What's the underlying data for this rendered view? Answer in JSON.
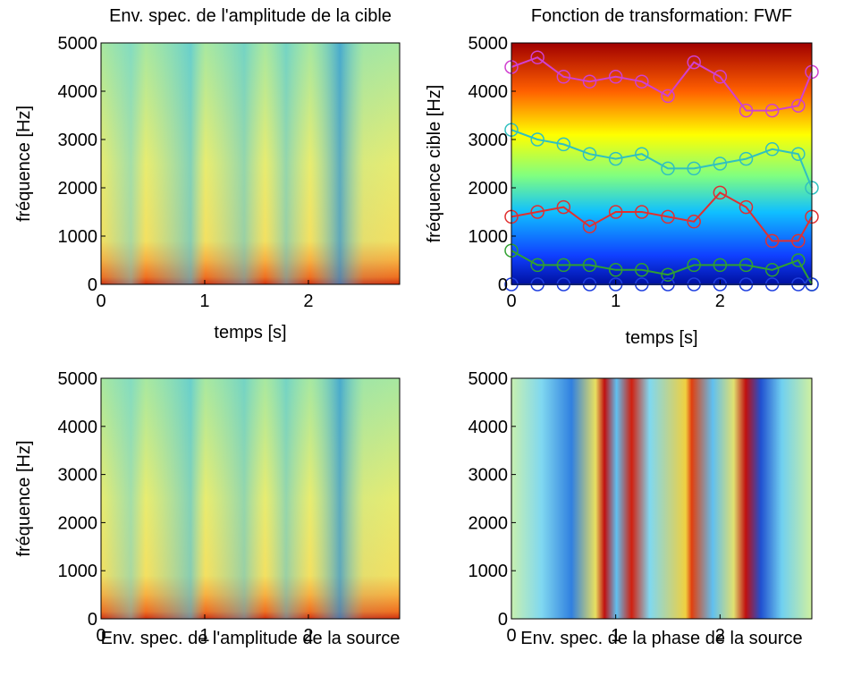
{
  "chart_data": [
    {
      "type": "spectrogram",
      "title": "Env. spec. de l'amplitude de la cible",
      "xlabel": "temps [s]",
      "ylabel": "fréquence [Hz]",
      "xlim": [
        0,
        2.88
      ],
      "ylim": [
        0,
        5000
      ],
      "xticks": [
        0,
        1,
        2
      ],
      "yticks": [
        0,
        1000,
        2000,
        3000,
        4000,
        5000
      ]
    },
    {
      "type": "spectrogram",
      "title": "Fonction de transformation: FWF",
      "xlabel": "temps [s]",
      "ylabel": "fréquence cible [Hz]",
      "xlim": [
        0,
        2.88
      ],
      "ylim": [
        0,
        5000
      ],
      "xticks": [
        0,
        1,
        2
      ],
      "yticks": [
        0,
        1000,
        2000,
        3000,
        4000,
        5000
      ],
      "x": [
        0,
        0.25,
        0.5,
        0.75,
        1,
        1.25,
        1.5,
        1.75,
        2,
        2.25,
        2.5,
        2.75,
        2.88
      ],
      "series": [
        {
          "color": "#d040d0",
          "values": [
            4500,
            4700,
            4300,
            4200,
            4300,
            4200,
            3900,
            4600,
            4300,
            3600,
            3600,
            3700,
            4400
          ]
        },
        {
          "color": "#30c0c0",
          "values": [
            3200,
            3000,
            2900,
            2700,
            2600,
            2700,
            2400,
            2400,
            2500,
            2600,
            2800,
            2700,
            2000
          ]
        },
        {
          "color": "#e03030",
          "values": [
            1400,
            1500,
            1600,
            1200,
            1500,
            1500,
            1400,
            1300,
            1900,
            1600,
            900,
            900,
            1400
          ]
        },
        {
          "color": "#30a030",
          "values": [
            700,
            400,
            400,
            400,
            300,
            300,
            200,
            400,
            400,
            400,
            300,
            500,
            0
          ]
        },
        {
          "color": "#2040e0",
          "values": [
            0,
            0,
            0,
            0,
            0,
            0,
            0,
            0,
            0,
            0,
            0,
            0,
            0
          ]
        }
      ]
    },
    {
      "type": "spectrogram",
      "xlabel": "Env. spec. de l'amplitude de la source",
      "ylabel": "fréquence [Hz]",
      "xlim": [
        0,
        2.88
      ],
      "ylim": [
        0,
        5000
      ],
      "xticks": [
        0,
        1,
        2
      ],
      "yticks": [
        0,
        1000,
        2000,
        3000,
        4000,
        5000
      ]
    },
    {
      "type": "spectrogram",
      "xlabel": "Env. spec. de la phase de la source",
      "xlim": [
        0,
        2.88
      ],
      "ylim": [
        0,
        5000
      ],
      "xticks": [
        0,
        1,
        2
      ],
      "yticks": [
        0,
        1000,
        2000,
        3000,
        4000,
        5000
      ]
    }
  ]
}
